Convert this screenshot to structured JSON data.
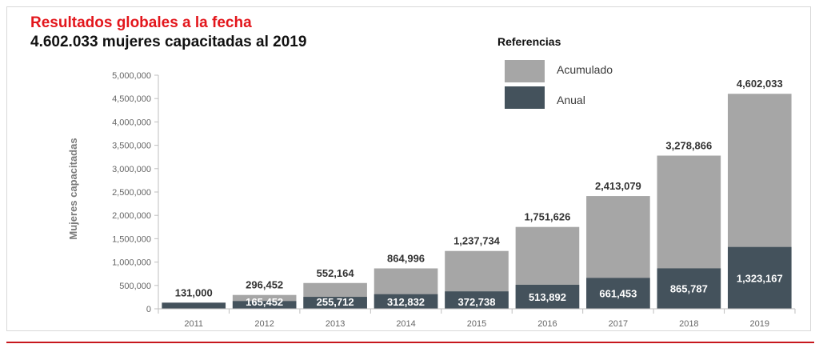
{
  "header": {
    "title": "Resultados globales a la fecha",
    "subtitle": "4.602.033 mujeres capacitadas al 2019"
  },
  "chart_data": {
    "type": "bar",
    "stacked": "overlay",
    "ylabel": "Mujeres capacitadas",
    "xlabel": "",
    "ylim": [
      0,
      5000000
    ],
    "y_ticks": [
      0,
      500000,
      1000000,
      1500000,
      2000000,
      2500000,
      3000000,
      3500000,
      4000000,
      4500000,
      5000000
    ],
    "y_tick_labels": [
      "0",
      "500,000",
      "1,000,000",
      "1,500,000",
      "2,000,000",
      "2,500,000",
      "3,000,000",
      "3,500,000",
      "4,000,000",
      "4,500,000",
      "5,000,000"
    ],
    "categories": [
      "2011",
      "2012",
      "2013",
      "2014",
      "2015",
      "2016",
      "2017",
      "2018",
      "2019"
    ],
    "series": [
      {
        "name": "Acumulado",
        "color": "#a6a6a6",
        "values": [
          131000,
          296452,
          552164,
          864996,
          1237734,
          1751626,
          2413079,
          3278866,
          4602033
        ],
        "labels": [
          "131,000",
          "296,452",
          "552,164",
          "864,996",
          "1,237,734",
          "1,751,626",
          "2,413,079",
          "3,278,866",
          "4,602,033"
        ]
      },
      {
        "name": "Anual",
        "color": "#44525c",
        "values": [
          131000,
          165452,
          255712,
          312832,
          372738,
          513892,
          661453,
          865787,
          1323167
        ],
        "labels": [
          "",
          "165,452",
          "255,712",
          "312,832",
          "372,738",
          "513,892",
          "661,453",
          "865,787",
          "1,323,167"
        ]
      }
    ],
    "legend": {
      "title": "Referencias",
      "position": "top-right"
    }
  }
}
